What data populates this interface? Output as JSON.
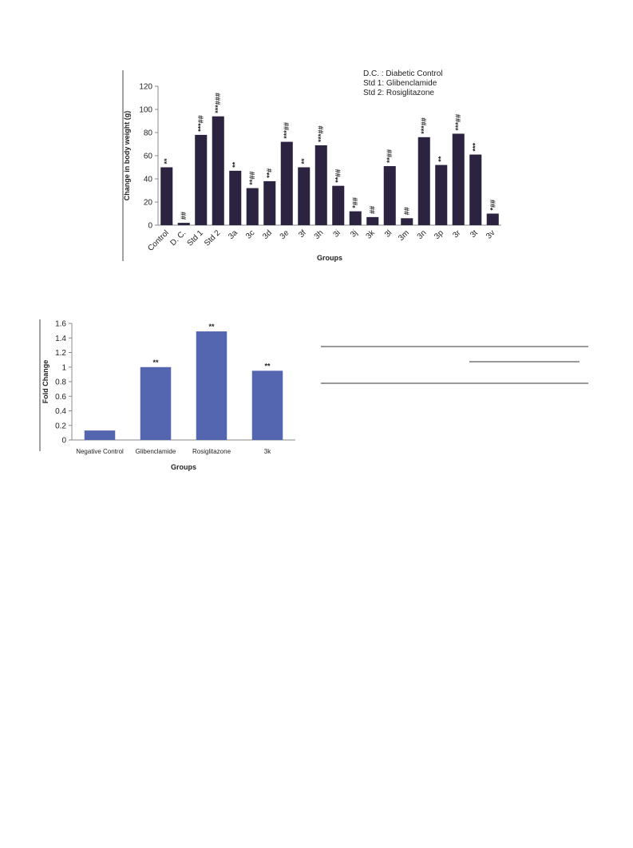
{
  "chart_data": [
    {
      "type": "bar",
      "y_label": "Change in body weight (g)",
      "x_label": "Groups",
      "annotations": [
        "D.C. : Diabetic Control",
        "Std 1: Glibenclamide",
        "Std 2: Rosiglitazone"
      ],
      "categories": [
        "Control",
        "D. C.",
        "Std 1",
        "Std 2",
        "3a",
        "3c",
        "3d",
        "3e",
        "3f",
        "3h",
        "3i",
        "3j",
        "3k",
        "3l",
        "3m",
        "3n",
        "3p",
        "3r",
        "3t",
        "3v"
      ],
      "values": [
        50,
        2,
        78,
        94,
        47,
        32,
        38,
        72,
        50,
        69,
        34,
        12,
        7,
        51,
        6,
        76,
        52,
        79,
        61,
        10
      ],
      "markers": [
        "**",
        "##",
        "***##",
        "***###",
        "**",
        "**##",
        "**#",
        "***##",
        "**",
        "***##",
        "**##",
        "*##",
        "##",
        "**##",
        "##",
        "***##",
        "**",
        "***##",
        "***",
        "*##"
      ],
      "color": "#2b2340",
      "ylim": [
        0,
        120
      ],
      "yticks": [
        0,
        20,
        40,
        60,
        80,
        100,
        120
      ]
    },
    {
      "type": "bar",
      "y_label": "Fold Change",
      "x_label": "Groups",
      "categories": [
        "Negative Control",
        "Glibenclamide",
        "Rosiglitazone",
        "3k"
      ],
      "values": [
        0.13,
        1.0,
        1.49,
        0.95
      ],
      "markers": [
        null,
        "**",
        "**",
        "**"
      ],
      "color": "#5566b0",
      "ylim": [
        0,
        1.6
      ],
      "yticks": [
        0,
        0.2,
        0.4,
        0.6,
        0.8,
        1,
        1.2,
        1.4,
        1.6
      ]
    }
  ]
}
